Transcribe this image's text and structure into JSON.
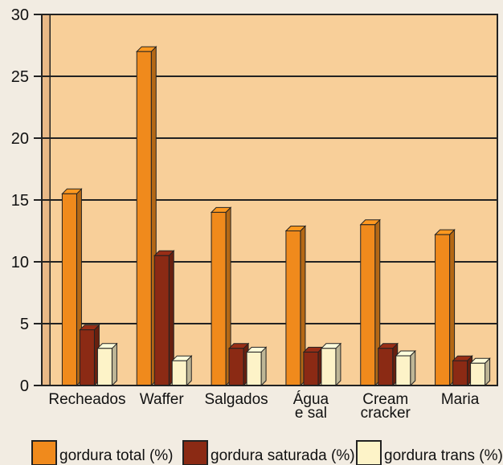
{
  "chart_data": {
    "type": "bar",
    "title": "",
    "xlabel": "",
    "ylabel": "",
    "ylim": [
      0,
      30
    ],
    "yticks": [
      0,
      5,
      10,
      15,
      20,
      25,
      30
    ],
    "grid": true,
    "legend_position": "bottom",
    "categories": [
      [
        "Recheados"
      ],
      [
        "Waffer"
      ],
      [
        "Salgados"
      ],
      [
        "Água",
        "e sal"
      ],
      [
        "Cream",
        "cracker"
      ],
      [
        "Maria"
      ]
    ],
    "series": [
      {
        "name": "gordura total (%)",
        "color": "#f08a1c",
        "values": [
          15.5,
          27,
          14,
          12.5,
          13,
          12.2
        ]
      },
      {
        "name": "gordura saturada (%)",
        "color": "#8b2a14",
        "values": [
          4.5,
          10.5,
          3,
          2.7,
          3,
          2
        ]
      },
      {
        "name": "gordura trans (%)",
        "color": "#fdf3c8",
        "values": [
          3,
          2,
          2.7,
          3,
          2.4,
          1.8
        ]
      }
    ]
  }
}
